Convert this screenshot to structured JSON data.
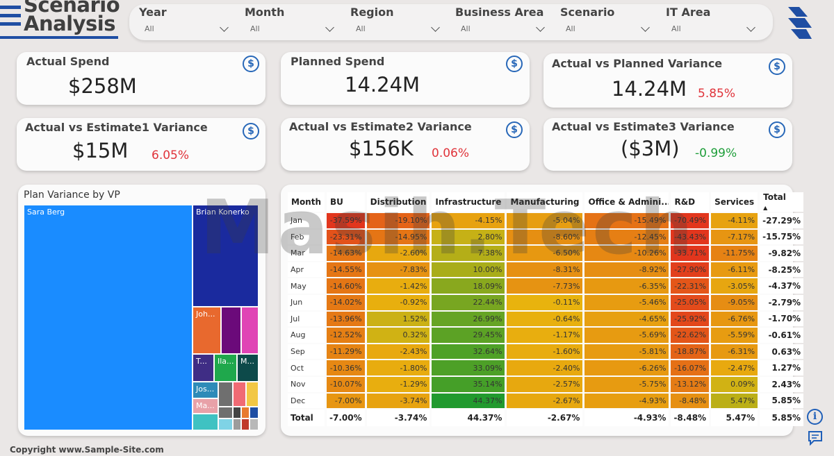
{
  "header": {
    "title_line1": "Scenario",
    "title_line2": "Analysis"
  },
  "filters": [
    {
      "label": "Year",
      "value": "All"
    },
    {
      "label": "Month",
      "value": "All"
    },
    {
      "label": "Region",
      "value": "All"
    },
    {
      "label": "Business Area",
      "value": "All"
    },
    {
      "label": "Scenario",
      "value": "All"
    },
    {
      "label": "IT Area",
      "value": "All"
    }
  ],
  "kpis": {
    "actual_spend": {
      "title": "Actual Spend",
      "value": "$258M"
    },
    "planned_spend": {
      "title": "Planned Spend",
      "value": "14.24M"
    },
    "actual_vs_planned": {
      "title": "Actual vs Planned Variance",
      "value": "14.24M",
      "pct": "5.85%"
    },
    "actual_vs_est1": {
      "title": "Actual vs Estimate1 Variance",
      "value": "$15M",
      "pct": "6.05%"
    },
    "actual_vs_est2": {
      "title": "Actual vs Estimate2 Variance",
      "value": "$156K",
      "pct": "0.06%"
    },
    "actual_vs_est3": {
      "title": "Actual vs Estimate3 Variance",
      "value": "($3M)",
      "pct": "-0.99%"
    }
  },
  "colors": {
    "positive": "#1f9e3a",
    "negative": "#e0333a",
    "accent": "#1f4ea3"
  },
  "treemap": {
    "title": "Plan Variance by VP",
    "labels": {
      "sara": "Sara Berg",
      "brian": "Brian Konerko",
      "joh": "Joh...",
      "t": "T...",
      "ila": "Ila...",
      "m": "M...",
      "jos": "Jos...",
      "ma": "Ma..."
    }
  },
  "matrix": {
    "headers": [
      "Month",
      "BU",
      "Distribution",
      "Infrastructure",
      "Manufacturing",
      "Office & Admini...",
      "R&D",
      "Services",
      "Total"
    ],
    "rows": [
      {
        "month": "Jan",
        "values": [
          "-37.59%",
          "-19.10%",
          "-4.15%",
          "-5.04%",
          "-15.49%",
          "-70.49%",
          "-4.11%"
        ],
        "total": "-27.29%"
      },
      {
        "month": "Feb",
        "values": [
          "-23.31%",
          "-14.95%",
          "2.80%",
          "-8.60%",
          "-12.45%",
          "-43.43%",
          "-7.17%"
        ],
        "total": "-15.75%"
      },
      {
        "month": "Mar",
        "values": [
          "-14.63%",
          "-2.60%",
          "7.38%",
          "-6.50%",
          "-10.26%",
          "-33.71%",
          "-11.75%"
        ],
        "total": "-9.82%"
      },
      {
        "month": "Apr",
        "values": [
          "-14.55%",
          "-7.83%",
          "10.00%",
          "-8.31%",
          "-8.92%",
          "-27.90%",
          "-6.11%"
        ],
        "total": "-8.25%"
      },
      {
        "month": "May",
        "values": [
          "-14.60%",
          "-1.42%",
          "18.09%",
          "-7.73%",
          "-6.35%",
          "-22.31%",
          "-3.05%"
        ],
        "total": "-4.37%"
      },
      {
        "month": "Jun",
        "values": [
          "-14.02%",
          "-0.92%",
          "22.44%",
          "-0.11%",
          "-5.46%",
          "-25.05%",
          "-9.05%"
        ],
        "total": "-2.79%"
      },
      {
        "month": "Jul",
        "values": [
          "-13.96%",
          "1.52%",
          "26.99%",
          "-0.64%",
          "-4.65%",
          "-25.92%",
          "-6.76%"
        ],
        "total": "-1.70%"
      },
      {
        "month": "Aug",
        "values": [
          "-12.52%",
          "0.32%",
          "29.45%",
          "-1.17%",
          "-5.69%",
          "-22.62%",
          "-5.59%"
        ],
        "total": "-0.61%"
      },
      {
        "month": "Sep",
        "values": [
          "-11.29%",
          "-2.43%",
          "32.64%",
          "-1.60%",
          "-5.81%",
          "-18.87%",
          "-6.31%"
        ],
        "total": "0.63%"
      },
      {
        "month": "Oct",
        "values": [
          "-10.36%",
          "-1.80%",
          "33.09%",
          "-2.40%",
          "-6.26%",
          "-16.07%",
          "-2.47%"
        ],
        "total": "1.27%"
      },
      {
        "month": "Nov",
        "values": [
          "-10.07%",
          "-1.29%",
          "35.14%",
          "-2.57%",
          "-5.75%",
          "-13.12%",
          "0.09%"
        ],
        "total": "2.43%"
      },
      {
        "month": "Dec",
        "values": [
          "-7.00%",
          "-3.74%",
          "44.37%",
          "-2.67%",
          "-4.93%",
          "-8.48%",
          "5.47%"
        ],
        "total": "5.85%"
      }
    ],
    "total_row": {
      "label": "Total",
      "values": [
        "-7.00%",
        "-3.74%",
        "44.37%",
        "-2.67%",
        "-4.93%",
        "-8.48%",
        "5.47%"
      ],
      "total": "5.85%"
    }
  },
  "watermark": "Masih.Tech",
  "footer": {
    "copyright": "Copyright www.Sample-Site.com"
  }
}
